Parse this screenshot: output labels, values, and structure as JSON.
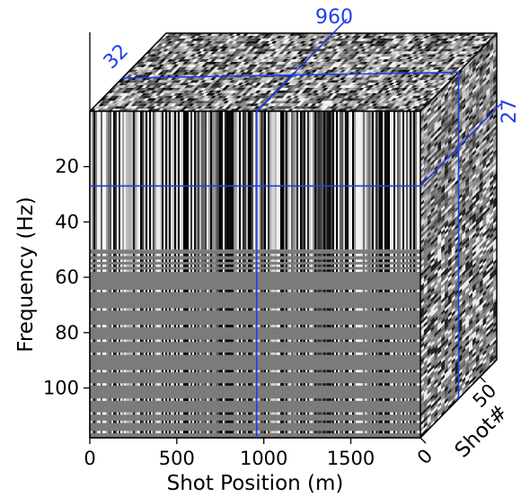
{
  "chart_data": {
    "type": "heatmap",
    "subtype": "3d-cube-slices",
    "colormap": "grayscale",
    "xlabel": "Shot Position (m)",
    "ylabel": "Frequency (Hz)",
    "zlabel": "Shot#",
    "xlim": [
      0,
      1900
    ],
    "ylim": [
      0,
      118
    ],
    "zlim": [
      0,
      64
    ],
    "x_ticks": [
      0,
      500,
      1000,
      1500
    ],
    "y_ticks": [
      20,
      40,
      60,
      80,
      100
    ],
    "z_ticks": [
      0,
      50
    ],
    "x_tick_labels": [
      "0",
      "500",
      "1000",
      "1500"
    ],
    "y_tick_labels": [
      "20",
      "40",
      "60",
      "80",
      "100"
    ],
    "z_tick_labels": [
      "0",
      "50"
    ],
    "slices": {
      "shot_position": 960,
      "frequency": 27,
      "shot_number": 32
    },
    "slice_labels": {
      "shot_position": "960",
      "frequency": "27",
      "shot_number": "32"
    },
    "grid": false,
    "signal_band_hz": [
      0,
      50
    ],
    "slice_line_color": "#1f3fe8"
  }
}
